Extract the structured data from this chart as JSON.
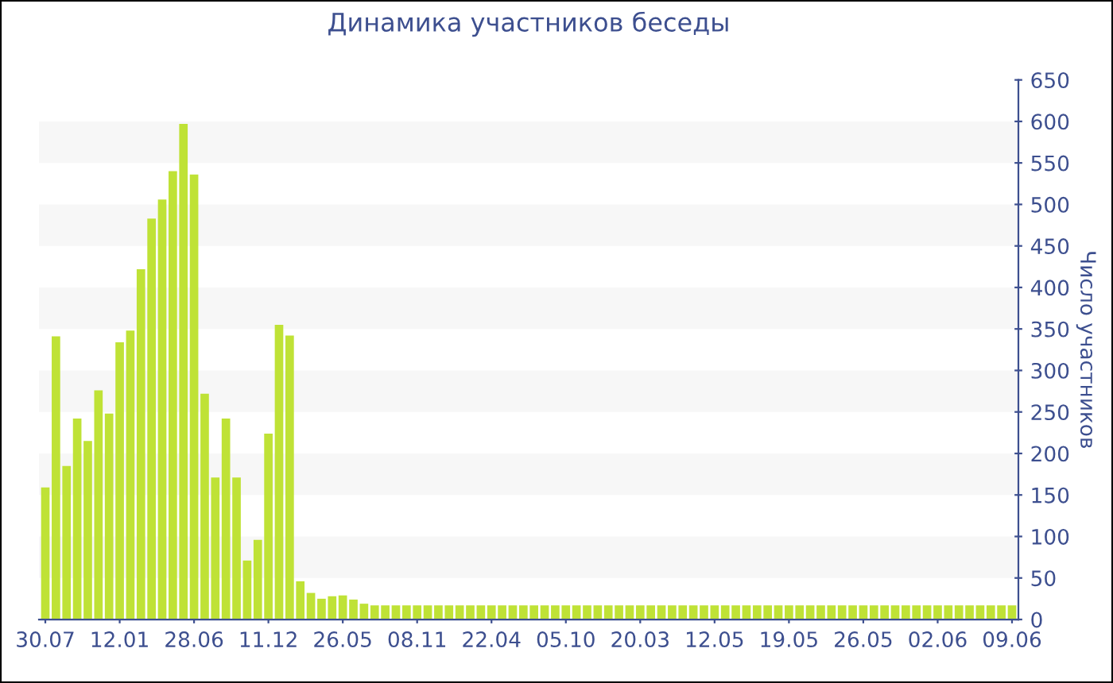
{
  "chart_data": {
    "type": "bar",
    "title": "Динамика участников беседы",
    "ylabel": "Число участников",
    "categories": [
      "30.07",
      null,
      null,
      null,
      null,
      null,
      null,
      "12.01",
      null,
      null,
      null,
      null,
      null,
      null,
      "28.06",
      null,
      null,
      null,
      null,
      null,
      null,
      "11.12",
      null,
      null,
      null,
      null,
      null,
      null,
      "26.05",
      null,
      null,
      null,
      null,
      null,
      null,
      "08.11",
      null,
      null,
      null,
      null,
      null,
      null,
      "22.04",
      null,
      null,
      null,
      null,
      null,
      null,
      "05.10",
      null,
      null,
      null,
      null,
      null,
      null,
      "20.03",
      null,
      null,
      null,
      null,
      null,
      null,
      "12.05",
      null,
      null,
      null,
      null,
      null,
      null,
      "19.05",
      null,
      null,
      null,
      null,
      null,
      null,
      "26.05",
      null,
      null,
      null,
      null,
      null,
      null,
      "02.06",
      null,
      null,
      null,
      null,
      null,
      null,
      "09.06"
    ],
    "values": [
      159,
      341,
      185,
      242,
      215,
      276,
      248,
      334,
      348,
      422,
      483,
      506,
      540,
      597,
      536,
      272,
      171,
      242,
      171,
      71,
      96,
      224,
      355,
      342,
      46,
      32,
      25,
      28,
      29,
      24,
      19,
      17,
      17,
      17,
      17,
      17,
      17,
      17,
      17,
      17,
      17,
      17,
      17,
      17,
      17,
      17,
      17,
      17,
      17,
      17,
      17,
      17,
      17,
      17,
      17,
      17,
      17,
      17,
      17,
      17,
      17,
      17,
      17,
      17,
      17,
      17,
      17,
      17,
      17,
      17,
      17,
      17,
      17,
      17,
      17,
      17,
      17,
      17,
      17,
      17,
      17,
      17,
      17,
      17,
      17,
      17,
      17,
      17,
      17,
      17,
      17,
      17
    ],
    "color": "#bfe236",
    "ylim": [
      0,
      650
    ],
    "yticks": [
      0,
      50,
      100,
      150,
      200,
      250,
      300,
      350,
      400,
      450,
      500,
      550,
      600,
      650
    ],
    "bands": [
      {
        "axis": "y",
        "from": 50,
        "to": 100,
        "color": "#f7f7f7"
      },
      {
        "axis": "y",
        "from": 150,
        "to": 200,
        "color": "#f7f7f7"
      },
      {
        "axis": "y",
        "from": 250,
        "to": 300,
        "color": "#f7f7f7"
      },
      {
        "axis": "y",
        "from": 350,
        "to": 400,
        "color": "#f7f7f7"
      },
      {
        "axis": "y",
        "from": 450,
        "to": 500,
        "color": "#f7f7f7"
      },
      {
        "axis": "y",
        "from": 550,
        "to": 600,
        "color": "#f7f7f7"
      }
    ],
    "grid": false,
    "legend": false
  }
}
